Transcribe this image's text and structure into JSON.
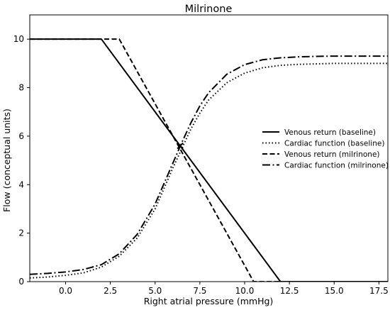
{
  "chart_data": {
    "type": "line",
    "title": "Milrinone",
    "xlabel": "Right atrial pressure (mmHg)",
    "ylabel": "Flow (conceptual units)",
    "xlim": [
      -2,
      18
    ],
    "ylim": [
      0,
      11
    ],
    "xticks": [
      "0.0",
      "2.5",
      "5.0",
      "7.5",
      "10.0",
      "12.5",
      "15.0",
      "17.5"
    ],
    "xtick_values": [
      0,
      2.5,
      5,
      7.5,
      10,
      12.5,
      15,
      17.5
    ],
    "yticks": [
      "0",
      "2",
      "4",
      "6",
      "8",
      "10"
    ],
    "ytick_values": [
      0,
      2,
      4,
      6,
      8,
      10
    ],
    "grid": false,
    "legend_position": "center-right",
    "series": [
      {
        "name": "Venous return (baseline)",
        "style": "solid",
        "color": "#000000",
        "x": [
          -2,
          2,
          12,
          18
        ],
        "y": [
          10,
          10,
          0,
          0
        ]
      },
      {
        "name": "Cardiac function (baseline)",
        "style": "dotted",
        "color": "#000000",
        "x": [
          -2,
          -1,
          0,
          1,
          2,
          3,
          4,
          5,
          5.5,
          6,
          6.5,
          7,
          7.5,
          8,
          9,
          10,
          11,
          12,
          13,
          14,
          15,
          16,
          17,
          18
        ],
        "y": [
          0.15,
          0.19,
          0.26,
          0.36,
          0.6,
          1.05,
          1.8,
          3.0,
          3.85,
          4.7,
          5.5,
          6.3,
          6.95,
          7.5,
          8.2,
          8.6,
          8.82,
          8.92,
          8.96,
          8.98,
          9.0,
          9.0,
          9.0,
          9.0
        ]
      },
      {
        "name": "Venous return (milrinone)",
        "style": "dashed",
        "color": "#000000",
        "x": [
          -2,
          3,
          10.5,
          18
        ],
        "y": [
          10,
          10,
          0,
          0
        ]
      },
      {
        "name": "Cardiac function (milrinone)",
        "style": "dashdot",
        "color": "#000000",
        "x": [
          -2,
          -1,
          0,
          1,
          2,
          3,
          4,
          5,
          5.5,
          6,
          6.5,
          7,
          7.5,
          8,
          9,
          10,
          11,
          12,
          13,
          14,
          15,
          16,
          17,
          18
        ],
        "y": [
          0.3,
          0.34,
          0.4,
          0.5,
          0.7,
          1.15,
          1.95,
          3.2,
          4.05,
          4.9,
          5.75,
          6.55,
          7.25,
          7.8,
          8.55,
          8.95,
          9.15,
          9.23,
          9.27,
          9.29,
          9.3,
          9.3,
          9.3,
          9.3
        ]
      }
    ],
    "annotations": [
      {
        "type": "marker",
        "shape": "x",
        "x": 6.4,
        "y": 5.6
      }
    ]
  }
}
